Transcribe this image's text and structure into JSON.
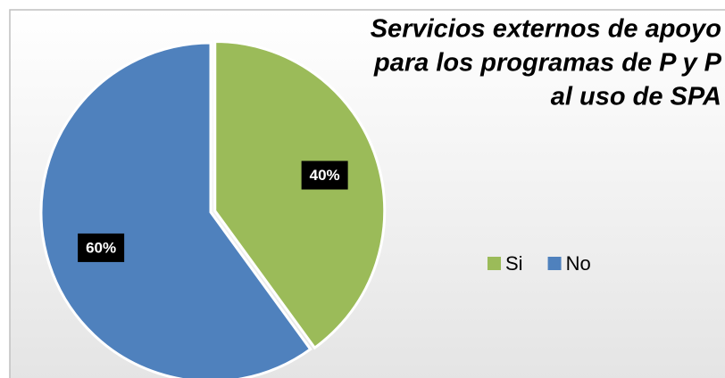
{
  "chart_data": {
    "type": "pie",
    "title": [
      "Servicios externos de apoyo",
      "para los programas de P y P",
      "al uso de SPA"
    ],
    "categories": [
      "Si",
      "No"
    ],
    "values": [
      40,
      60
    ],
    "value_labels": [
      "40%",
      "60%"
    ],
    "colors": [
      "#9bbb59",
      "#4f81bd"
    ],
    "legend": "right"
  }
}
